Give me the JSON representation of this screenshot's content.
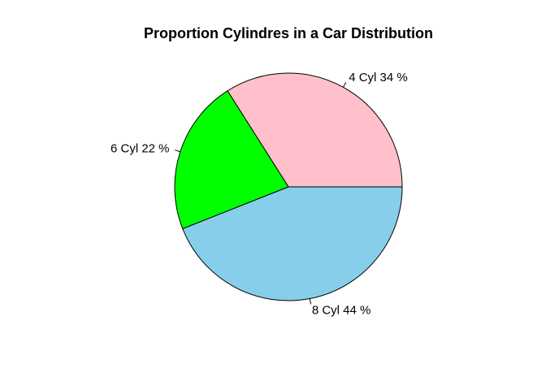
{
  "chart_data": {
    "type": "pie",
    "title": "Proportion Cylindres in a Car Distribution",
    "labels": [
      "4 Cyl 34 %",
      "6 Cyl 22 %",
      "8 Cyl 44 %"
    ],
    "values": [
      34,
      22,
      44
    ],
    "colors": [
      "#FFC0CB",
      "#00FF00",
      "#87CEEB"
    ],
    "start_angle_deg": 0,
    "direction": "counterclockwise"
  }
}
